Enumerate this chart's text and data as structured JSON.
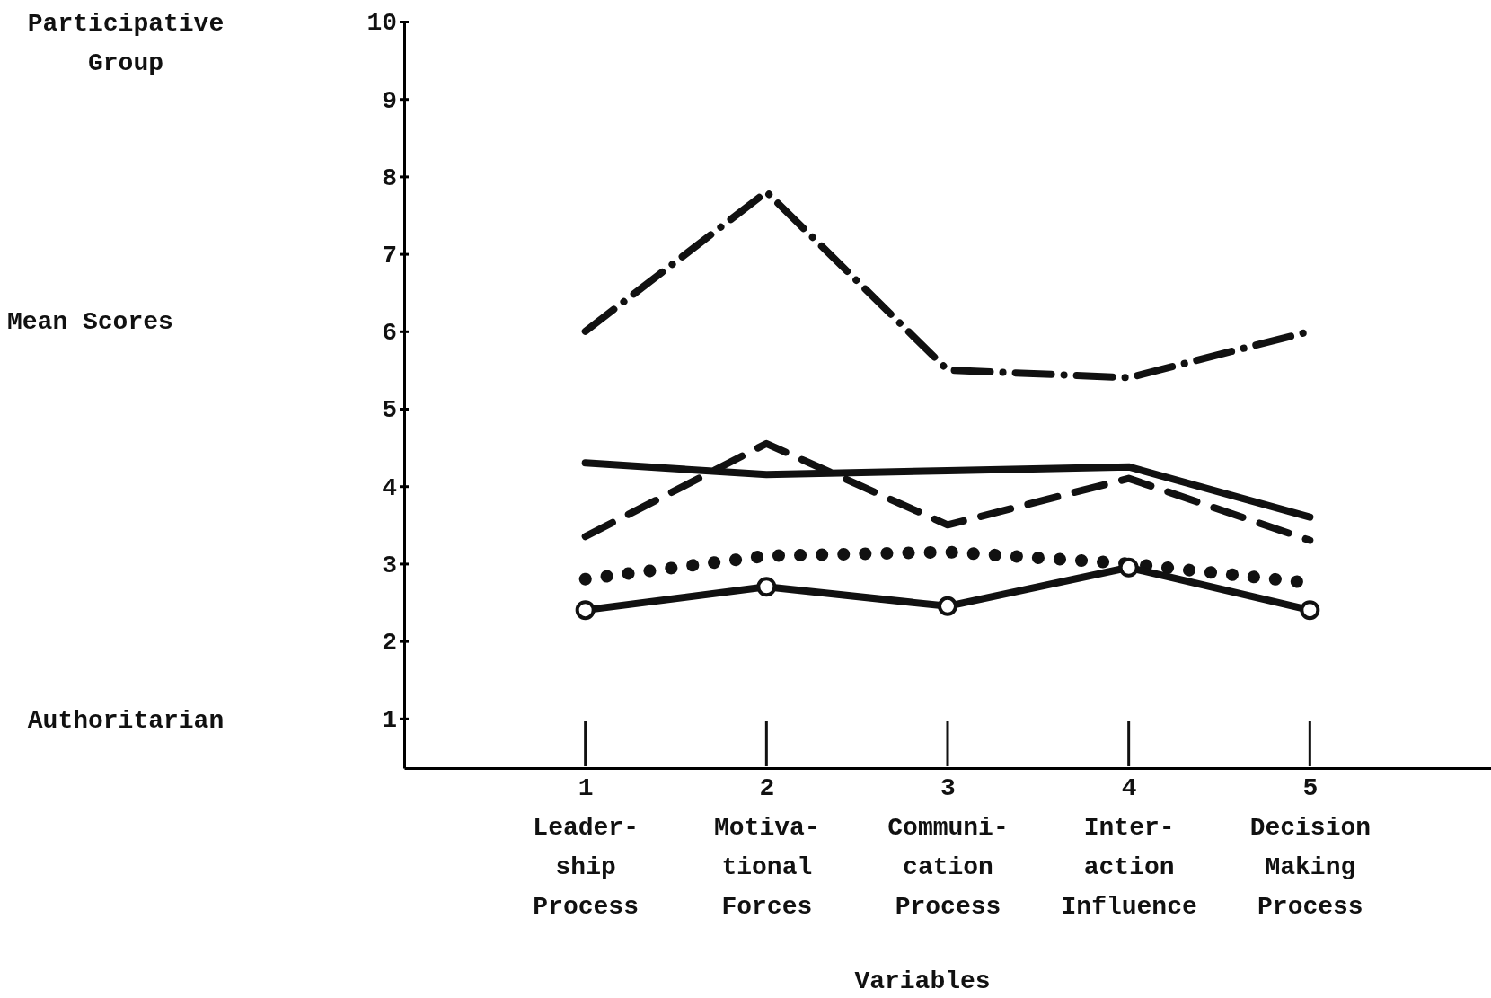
{
  "chart_data": {
    "type": "line",
    "xlabel": "Variables",
    "annotations": [
      "Participative Group",
      "Mean Scores",
      "Authoritarian"
    ],
    "x": [
      1,
      2,
      3,
      4,
      5
    ],
    "xlim": [
      0,
      6
    ],
    "ylim": [
      0.36,
      10
    ],
    "xticks": [
      {
        "value": 1,
        "label": "1\nLeader-\nship\nProcess"
      },
      {
        "value": 2,
        "label": "2\nMotiva-\ntional\nForces"
      },
      {
        "value": 3,
        "label": "3\nCommuni-\ncation\nProcess"
      },
      {
        "value": 4,
        "label": "4\nInter-\naction\nInfluence"
      },
      {
        "value": 5,
        "label": "5\nDecision\nMaking\nProcess"
      }
    ],
    "yticks": [
      1,
      2,
      3,
      4,
      5,
      6,
      7,
      8,
      9,
      10
    ],
    "grid": false,
    "series": [
      {
        "color": "#111111",
        "line_style": "dashdot",
        "marker": "none",
        "values": [
          6.0,
          7.8,
          5.5,
          5.4,
          6.0
        ]
      },
      {
        "color": "#111111",
        "line_style": "solid",
        "marker": "none",
        "values": [
          4.3,
          4.15,
          4.2,
          4.25,
          3.6
        ]
      },
      {
        "color": "#111111",
        "line_style": "dashed",
        "marker": "none",
        "values": [
          3.35,
          4.55,
          3.5,
          4.1,
          3.3
        ]
      },
      {
        "color": "#111111",
        "line_style": "dotted",
        "marker": "none",
        "values": [
          2.8,
          3.1,
          3.15,
          3.0,
          2.75
        ]
      },
      {
        "color": "#111111",
        "line_style": "solid",
        "marker": "circle",
        "values": [
          2.4,
          2.7,
          2.45,
          2.95,
          2.4
        ]
      }
    ]
  }
}
